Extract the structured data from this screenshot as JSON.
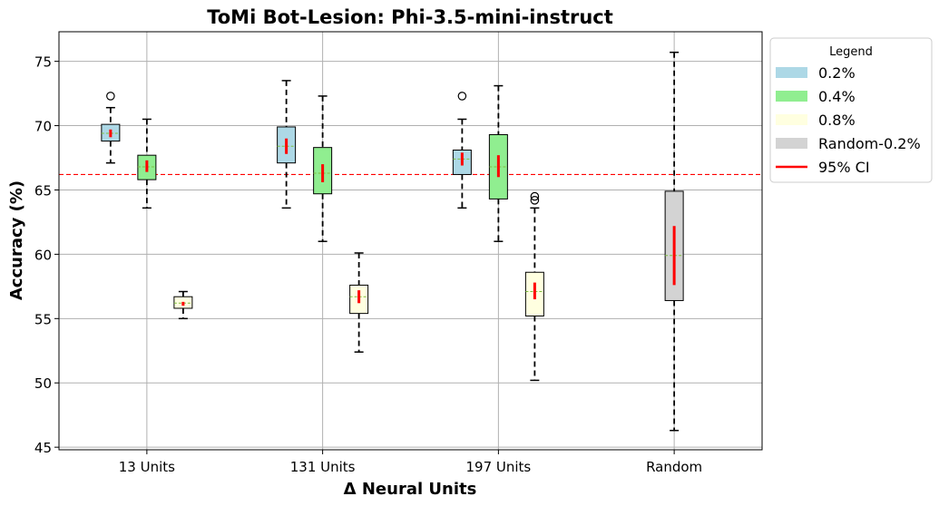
{
  "chart_data": {
    "type": "boxplot",
    "title": "ToMi Bot-Lesion: Phi-3.5-mini-instruct",
    "xlabel": "Δ Neural Units",
    "ylabel": "Accuracy (%)",
    "ylim": [
      44.8,
      77.3
    ],
    "yticks": [
      45,
      50,
      55,
      60,
      65,
      70,
      75
    ],
    "ytick_labels": [
      "45",
      "50",
      "55",
      "60",
      "65",
      "70",
      "75"
    ],
    "categories": [
      "13 Units",
      "131 Units",
      "197 Units",
      "Random"
    ],
    "grid": true,
    "baseline": {
      "value": 66.2,
      "color": "#ff0000",
      "style": "dashed"
    },
    "legend": {
      "title": "Legend",
      "placement": "outside-top-right",
      "items": [
        {
          "label": "0.2%",
          "color": "#add8e6",
          "kind": "patch"
        },
        {
          "label": "0.4%",
          "color": "#90ee90",
          "kind": "patch"
        },
        {
          "label": "0.8%",
          "color": "#ffffe0",
          "kind": "patch"
        },
        {
          "label": "Random-0.2%",
          "color": "#d3d3d3",
          "kind": "patch"
        },
        {
          "label": "95% CI",
          "color": "#ff0000",
          "kind": "line"
        }
      ]
    },
    "series": [
      {
        "name": "0.2%",
        "color": "#add8e6",
        "boxes": [
          {
            "category": "13 Units",
            "whisker_low": 67.1,
            "q1": 68.8,
            "median": 69.4,
            "q3": 70.1,
            "whisker_high": 71.4,
            "outliers": [
              72.3
            ],
            "ci": [
              69.1,
              69.7
            ]
          },
          {
            "category": "131 Units",
            "whisker_low": 63.6,
            "q1": 67.1,
            "median": 68.4,
            "q3": 69.9,
            "whisker_high": 73.5,
            "outliers": [],
            "ci": [
              67.8,
              69.0
            ]
          },
          {
            "category": "197 Units",
            "whisker_low": 63.6,
            "q1": 66.2,
            "median": 67.4,
            "q3": 68.1,
            "whisker_high": 70.5,
            "outliers": [
              72.3
            ],
            "ci": [
              66.9,
              67.9
            ]
          }
        ]
      },
      {
        "name": "0.4%",
        "color": "#90ee90",
        "boxes": [
          {
            "category": "13 Units",
            "whisker_low": 63.6,
            "q1": 65.8,
            "median": 66.8,
            "q3": 67.7,
            "whisker_high": 70.5,
            "outliers": [],
            "ci": [
              66.4,
              67.3
            ]
          },
          {
            "category": "131 Units",
            "whisker_low": 61.0,
            "q1": 64.7,
            "median": 66.3,
            "q3": 68.3,
            "whisker_high": 72.3,
            "outliers": [],
            "ci": [
              65.6,
              67.0
            ]
          },
          {
            "category": "197 Units",
            "whisker_low": 61.0,
            "q1": 64.3,
            "median": 66.8,
            "q3": 69.3,
            "whisker_high": 73.1,
            "outliers": [],
            "ci": [
              66.0,
              67.7
            ]
          }
        ]
      },
      {
        "name": "0.8%",
        "color": "#ffffe0",
        "boxes": [
          {
            "category": "13 Units",
            "whisker_low": 55.0,
            "q1": 55.8,
            "median": 56.2,
            "q3": 56.7,
            "whisker_high": 57.1,
            "outliers": [],
            "ci": [
              56.0,
              56.3
            ]
          },
          {
            "category": "131 Units",
            "whisker_low": 52.4,
            "q1": 55.4,
            "median": 56.7,
            "q3": 57.6,
            "whisker_high": 60.1,
            "outliers": [],
            "ci": [
              56.2,
              57.2
            ]
          },
          {
            "category": "197 Units",
            "whisker_low": 50.2,
            "q1": 55.2,
            "median": 57.1,
            "q3": 58.6,
            "whisker_high": 63.6,
            "outliers": [
              64.2,
              64.5
            ],
            "ci": [
              56.5,
              57.8
            ]
          }
        ]
      },
      {
        "name": "Random-0.2%",
        "color": "#d3d3d3",
        "boxes": [
          {
            "category": "Random",
            "whisker_low": 46.3,
            "q1": 56.4,
            "median": 59.9,
            "q3": 64.9,
            "whisker_high": 75.7,
            "outliers": [],
            "ci": [
              57.6,
              62.2
            ]
          }
        ]
      }
    ]
  }
}
